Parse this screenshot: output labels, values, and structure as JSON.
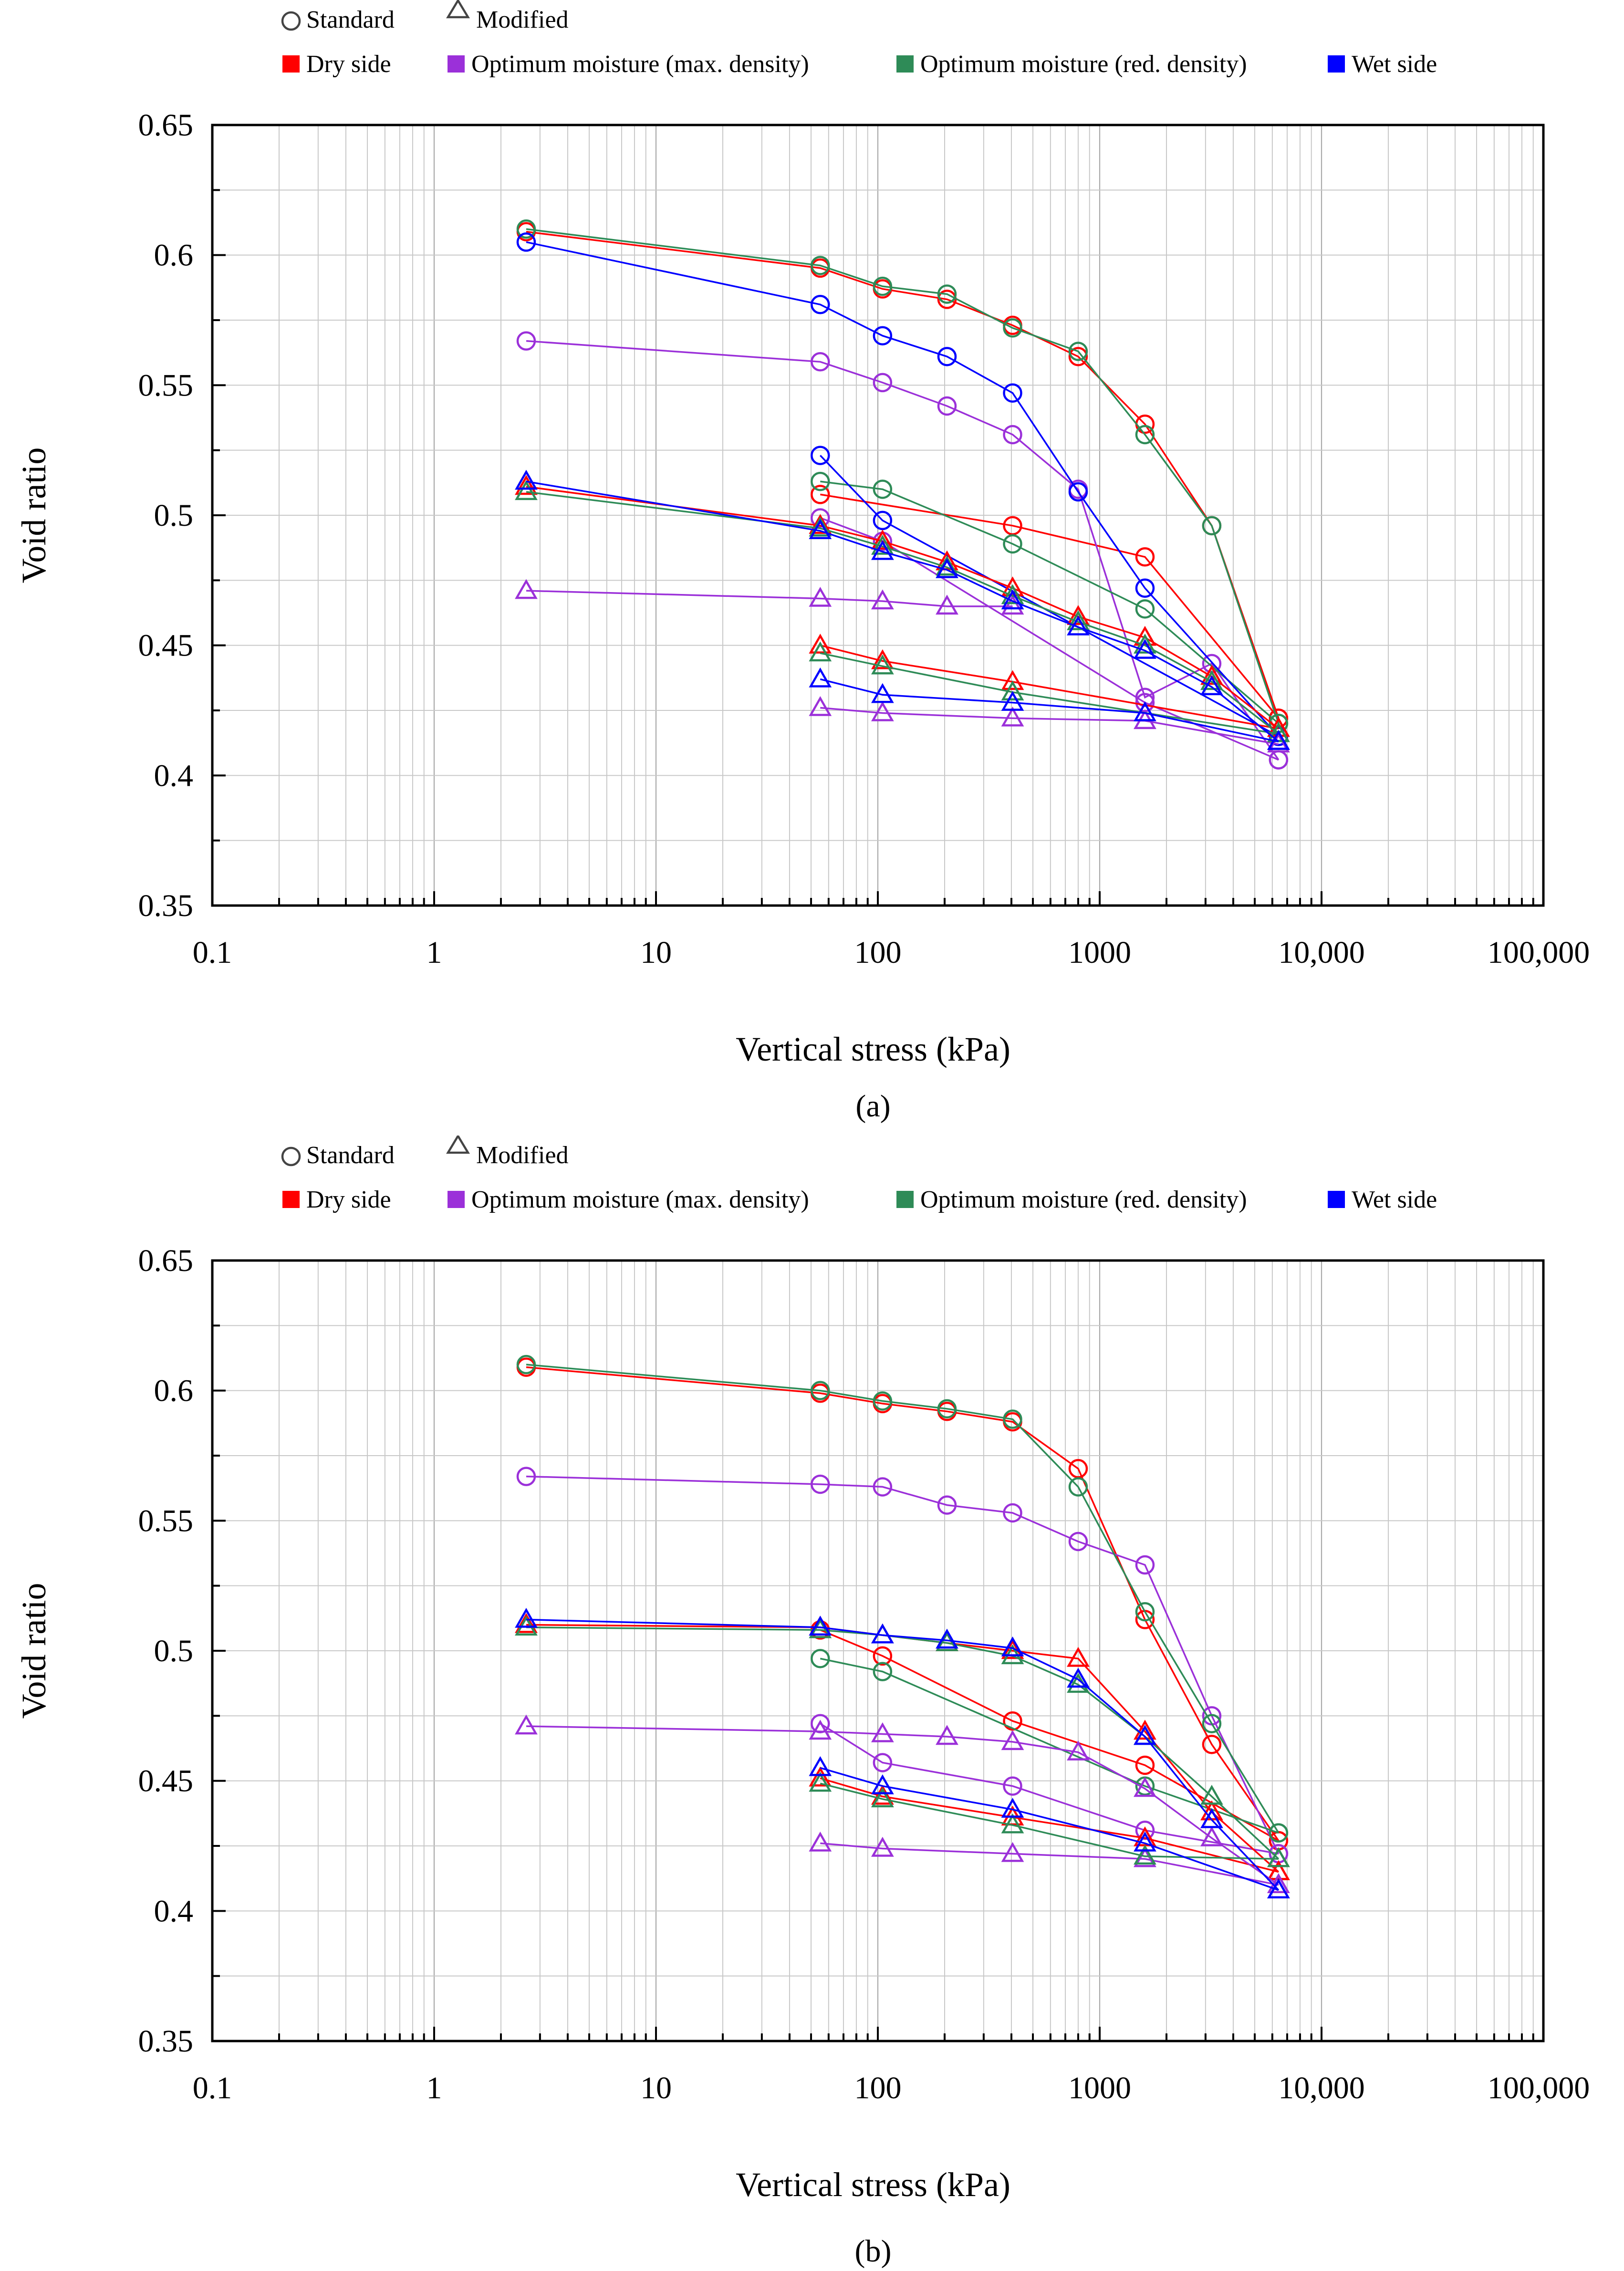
{
  "figure": {
    "panel_labels": [
      "(a)",
      "(b)"
    ]
  },
  "legend": {
    "markers": [
      {
        "symbol": "○",
        "label": "Standard"
      },
      {
        "symbol": "△",
        "label": "Modified"
      }
    ],
    "colors": [
      {
        "label": "Dry side",
        "color": "#ff0000"
      },
      {
        "label": "Optimum moisture (max. density)",
        "color": "#9b30d9"
      },
      {
        "label": "Optimum moisture (red. density)",
        "color": "#2e8b57"
      },
      {
        "label": "Wet side",
        "color": "#0000ff"
      }
    ]
  },
  "chart_data": [
    {
      "type": "line",
      "panel": "(a)",
      "xlabel": "Vertical stress (kPa)",
      "ylabel": "Void ratio",
      "xscale": "log",
      "xlim": [
        0.1,
        100000
      ],
      "ylim": [
        0.35,
        0.65
      ],
      "xticks": [
        {
          "v": 0.1,
          "label": "0.1"
        },
        {
          "v": 1,
          "label": "1"
        },
        {
          "v": 10,
          "label": "10"
        },
        {
          "v": 100,
          "label": "100"
        },
        {
          "v": 1000,
          "label": "1000"
        },
        {
          "v": 10000,
          "label": "10,000"
        },
        {
          "v": 100000,
          "label": "100,000"
        }
      ],
      "yticks": [
        {
          "v": 0.35,
          "label": "0.35"
        },
        {
          "v": 0.4,
          "label": "0.4"
        },
        {
          "v": 0.45,
          "label": "0.45"
        },
        {
          "v": 0.5,
          "label": "0.5"
        },
        {
          "v": 0.55,
          "label": "0.55"
        },
        {
          "v": 0.6,
          "label": "0.6"
        },
        {
          "v": 0.65,
          "label": "0.65"
        }
      ],
      "series": [
        {
          "name": "Standard – Dry side – loading",
          "marker": "circle",
          "color": "#ff0000",
          "x": [
            2.6,
            55,
            105,
            205,
            405,
            800,
            1600,
            3200,
            6400
          ],
          "y": [
            0.609,
            0.595,
            0.587,
            0.583,
            0.573,
            0.561,
            0.535,
            0.496,
            0.422
          ]
        },
        {
          "name": "Standard – Dry side – unloading",
          "marker": "circle",
          "color": "#ff0000",
          "x": [
            6400,
            1600,
            405,
            55
          ],
          "y": [
            0.422,
            0.484,
            0.496,
            0.508
          ]
        },
        {
          "name": "Standard – Opt. (max. density) – loading",
          "marker": "circle",
          "color": "#9b30d9",
          "x": [
            2.6,
            55,
            105,
            205,
            405,
            800,
            1600,
            3200,
            6400
          ],
          "y": [
            0.567,
            0.559,
            0.551,
            0.542,
            0.531,
            0.51,
            0.43,
            0.443,
            0.406
          ]
        },
        {
          "name": "Standard – Opt. (max. density) – unloading",
          "marker": "circle",
          "color": "#9b30d9",
          "x": [
            6400,
            1600,
            105,
            55
          ],
          "y": [
            0.406,
            0.428,
            0.49,
            0.499
          ]
        },
        {
          "name": "Standard – Opt. (red. density) – loading",
          "marker": "circle",
          "color": "#2e8b57",
          "x": [
            2.6,
            55,
            105,
            205,
            405,
            800,
            1600,
            3200,
            6400
          ],
          "y": [
            0.61,
            0.596,
            0.588,
            0.585,
            0.572,
            0.563,
            0.531,
            0.496,
            0.42
          ]
        },
        {
          "name": "Standard – Opt. (red. density) – unloading",
          "marker": "circle",
          "color": "#2e8b57",
          "x": [
            6400,
            1600,
            405,
            105,
            55
          ],
          "y": [
            0.42,
            0.464,
            0.489,
            0.51,
            0.513
          ]
        },
        {
          "name": "Standard – Wet side – loading",
          "marker": "circle",
          "color": "#0000ff",
          "x": [
            2.6,
            55,
            105,
            205,
            405,
            800,
            1600,
            6400
          ],
          "y": [
            0.605,
            0.581,
            0.569,
            0.561,
            0.547,
            0.509,
            0.472,
            0.415
          ]
        },
        {
          "name": "Standard – Wet side – unloading",
          "marker": "circle",
          "color": "#0000ff",
          "x": [
            6400,
            105,
            55
          ],
          "y": [
            0.415,
            0.498,
            0.523
          ]
        },
        {
          "name": "Modified – Dry side – loading",
          "marker": "triangle",
          "color": "#ff0000",
          "x": [
            2.6,
            55,
            105,
            205,
            405,
            800,
            1600,
            3200,
            6400
          ],
          "y": [
            0.511,
            0.496,
            0.49,
            0.482,
            0.472,
            0.461,
            0.453,
            0.438,
            0.418
          ]
        },
        {
          "name": "Modified – Dry side – unloading",
          "marker": "triangle",
          "color": "#ff0000",
          "x": [
            6400,
            405,
            105,
            55
          ],
          "y": [
            0.418,
            0.436,
            0.444,
            0.45
          ]
        },
        {
          "name": "Modified – Opt. (max. density) – loading",
          "marker": "triangle",
          "color": "#9b30d9",
          "x": [
            2.6,
            55,
            105,
            205,
            405
          ],
          "y": [
            0.471,
            0.468,
            0.467,
            0.465,
            0.465
          ]
        },
        {
          "name": "Modified – Opt. (max. density) – unloading",
          "marker": "triangle",
          "color": "#9b30d9",
          "x": [
            6400,
            1600,
            405,
            105,
            55
          ],
          "y": [
            0.412,
            0.421,
            0.422,
            0.424,
            0.426
          ]
        },
        {
          "name": "Modified – Opt. (red. density) – loading",
          "marker": "triangle",
          "color": "#2e8b57",
          "x": [
            2.6,
            55,
            105,
            205,
            405,
            800,
            1600,
            3200,
            6400
          ],
          "y": [
            0.509,
            0.495,
            0.488,
            0.48,
            0.469,
            0.459,
            0.45,
            0.436,
            0.416
          ]
        },
        {
          "name": "Modified – Opt. (red. density) – unloading",
          "marker": "triangle",
          "color": "#2e8b57",
          "x": [
            6400,
            405,
            105,
            55
          ],
          "y": [
            0.416,
            0.432,
            0.442,
            0.447
          ]
        },
        {
          "name": "Modified – Wet side – loading",
          "marker": "triangle",
          "color": "#0000ff",
          "x": [
            2.6,
            55,
            105,
            205,
            405,
            800,
            1600,
            3200,
            6400
          ],
          "y": [
            0.513,
            0.494,
            0.486,
            0.479,
            0.467,
            0.457,
            0.448,
            0.434,
            0.413
          ]
        },
        {
          "name": "Modified – Wet side – unloading",
          "marker": "triangle",
          "color": "#0000ff",
          "x": [
            6400,
            1600,
            405,
            105,
            55
          ],
          "y": [
            0.413,
            0.424,
            0.428,
            0.431,
            0.437
          ]
        }
      ]
    },
    {
      "type": "line",
      "panel": "(b)",
      "xlabel": "Vertical stress (kPa)",
      "ylabel": "Void ratio",
      "xscale": "log",
      "xlim": [
        0.1,
        100000
      ],
      "ylim": [
        0.35,
        0.65
      ],
      "xticks": [
        {
          "v": 0.1,
          "label": "0.1"
        },
        {
          "v": 1,
          "label": "1"
        },
        {
          "v": 10,
          "label": "10"
        },
        {
          "v": 100,
          "label": "100"
        },
        {
          "v": 1000,
          "label": "1000"
        },
        {
          "v": 10000,
          "label": "10,000"
        },
        {
          "v": 100000,
          "label": "100,000"
        }
      ],
      "yticks": [
        {
          "v": 0.35,
          "label": "0.35"
        },
        {
          "v": 0.4,
          "label": "0.4"
        },
        {
          "v": 0.45,
          "label": "0.45"
        },
        {
          "v": 0.5,
          "label": "0.5"
        },
        {
          "v": 0.55,
          "label": "0.55"
        },
        {
          "v": 0.6,
          "label": "0.6"
        },
        {
          "v": 0.65,
          "label": "0.65"
        }
      ],
      "series": [
        {
          "name": "Standard – Dry side – loading",
          "marker": "circle",
          "color": "#ff0000",
          "x": [
            2.6,
            55,
            105,
            205,
            405,
            800,
            1600,
            3200,
            6400
          ],
          "y": [
            0.609,
            0.599,
            0.595,
            0.592,
            0.588,
            0.57,
            0.512,
            0.464,
            0.427
          ]
        },
        {
          "name": "Standard – Dry side – unloading",
          "marker": "circle",
          "color": "#ff0000",
          "x": [
            6400,
            1600,
            405,
            105,
            55
          ],
          "y": [
            0.427,
            0.456,
            0.473,
            0.498,
            0.508
          ]
        },
        {
          "name": "Standard – Opt. (max. density) – loading",
          "marker": "circle",
          "color": "#9b30d9",
          "x": [
            2.6,
            55,
            105,
            205,
            405,
            800,
            1600,
            3200,
            6400
          ],
          "y": [
            0.567,
            0.564,
            0.563,
            0.556,
            0.553,
            0.542,
            0.533,
            0.475,
            0.422
          ]
        },
        {
          "name": "Standard – Opt. (max. density) – unloading",
          "marker": "circle",
          "color": "#9b30d9",
          "x": [
            6400,
            1600,
            405,
            105,
            55
          ],
          "y": [
            0.422,
            0.431,
            0.448,
            0.457,
            0.472
          ]
        },
        {
          "name": "Standard – Opt. (red. density) – loading",
          "marker": "circle",
          "color": "#2e8b57",
          "x": [
            2.6,
            55,
            105,
            205,
            405,
            800,
            1600,
            3200,
            6400
          ],
          "y": [
            0.61,
            0.6,
            0.596,
            0.593,
            0.589,
            0.563,
            0.515,
            0.472,
            0.43
          ]
        },
        {
          "name": "Standard – Opt. (red. density) – unloading",
          "marker": "circle",
          "color": "#2e8b57",
          "x": [
            6400,
            1600,
            105,
            55
          ],
          "y": [
            0.43,
            0.448,
            0.492,
            0.497
          ]
        },
        {
          "name": "Modified – Dry side – loading",
          "marker": "triangle",
          "color": "#ff0000",
          "x": [
            2.6,
            55,
            105,
            205,
            405,
            800,
            1600,
            3200,
            6400
          ],
          "y": [
            0.51,
            0.509,
            0.506,
            0.503,
            0.5,
            0.497,
            0.469,
            0.438,
            0.415
          ]
        },
        {
          "name": "Modified – Dry side – unloading",
          "marker": "triangle",
          "color": "#ff0000",
          "x": [
            6400,
            1600,
            405,
            105,
            55
          ],
          "y": [
            0.415,
            0.428,
            0.436,
            0.444,
            0.451
          ]
        },
        {
          "name": "Modified – Opt. (max. density) – loading",
          "marker": "triangle",
          "color": "#9b30d9",
          "x": [
            2.6,
            55,
            105,
            205,
            405,
            800,
            1600,
            3200,
            6400
          ],
          "y": [
            0.471,
            0.469,
            0.468,
            0.467,
            0.465,
            0.461,
            0.447,
            0.428,
            0.41
          ]
        },
        {
          "name": "Modified – Opt. (max. density) – unloading",
          "marker": "triangle",
          "color": "#9b30d9",
          "x": [
            6400,
            1600,
            405,
            105,
            55
          ],
          "y": [
            0.41,
            0.42,
            0.422,
            0.424,
            0.426
          ]
        },
        {
          "name": "Modified – Opt. (red. density) – loading",
          "marker": "triangle",
          "color": "#2e8b57",
          "x": [
            2.6,
            55,
            105,
            205,
            405,
            800,
            1600,
            3200,
            6400
          ],
          "y": [
            0.509,
            0.508,
            0.506,
            0.503,
            0.498,
            0.487,
            0.467,
            0.444,
            0.42
          ]
        },
        {
          "name": "Modified – Opt. (red. density) – unloading",
          "marker": "triangle",
          "color": "#2e8b57",
          "x": [
            6400,
            1600,
            405,
            105,
            55
          ],
          "y": [
            0.42,
            0.421,
            0.433,
            0.443,
            0.449
          ]
        },
        {
          "name": "Modified – Wet side – loading",
          "marker": "triangle",
          "color": "#0000ff",
          "x": [
            2.6,
            55,
            105,
            205,
            405,
            800,
            1600,
            3200,
            6400
          ],
          "y": [
            0.512,
            0.509,
            0.506,
            0.504,
            0.501,
            0.489,
            0.467,
            0.435,
            0.408
          ]
        },
        {
          "name": "Modified – Wet side – unloading",
          "marker": "triangle",
          "color": "#0000ff",
          "x": [
            6400,
            1600,
            405,
            105,
            55
          ],
          "y": [
            0.408,
            0.426,
            0.439,
            0.448,
            0.455
          ]
        }
      ]
    }
  ]
}
